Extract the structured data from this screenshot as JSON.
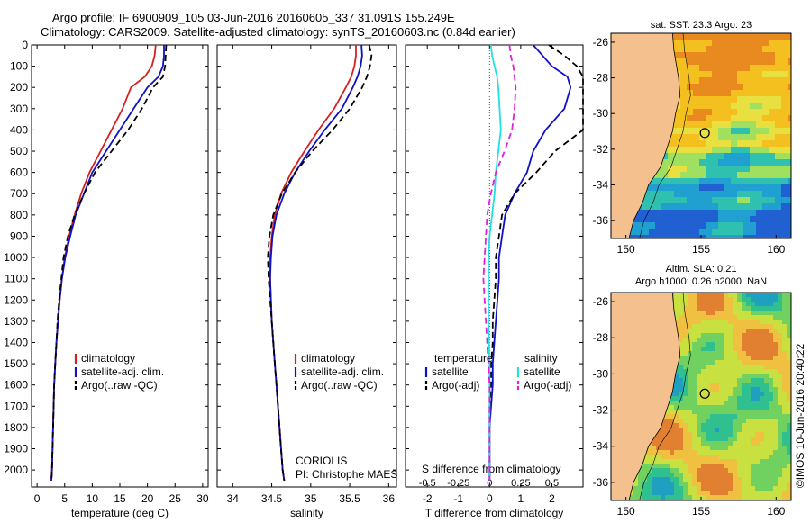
{
  "header": {
    "line1": "Argo profile: IF 6900909_105 03-Jun-2016 20160605_337 31.091S 155.249E",
    "line2": "Climatology: CARS2009. Satellite-adjusted climatology: synTS_20160603.nc (0.84d earlier)"
  },
  "colors": {
    "climatology": "#d62020",
    "satellite_temperature": "#1010c8",
    "satellite_salinity": "#20e0e0",
    "argo": "#000000",
    "argo_salinity_diff": "#e020e0",
    "land": "#f4c08e"
  },
  "chart_data": [
    {
      "type": "line",
      "name": "temperature-profile",
      "xlabel": "temperature (deg C)",
      "ylabel": "",
      "xlim": [
        -1,
        31
      ],
      "ylim": [
        2080,
        0
      ],
      "xticks": [
        0,
        5,
        10,
        15,
        20,
        25,
        30
      ],
      "yticks": [
        0,
        100,
        200,
        300,
        400,
        500,
        600,
        700,
        800,
        900,
        1000,
        1100,
        1200,
        1300,
        1400,
        1500,
        1600,
        1700,
        1800,
        1900,
        2000
      ],
      "legend": [
        "climatology",
        "satellite-adj. clim.",
        "Argo(..raw -QC)"
      ],
      "series": [
        {
          "name": "climatology",
          "color": "#d62020",
          "style": "solid",
          "x": [
            21.5,
            21.3,
            20.8,
            19.5,
            17.0,
            15.5,
            13.5,
            11.5,
            9.5,
            8.0,
            6.8,
            5.8,
            5.0,
            4.5,
            4.1,
            3.8,
            3.5,
            3.3,
            3.1,
            3.0,
            2.9,
            2.8,
            2.7,
            2.6
          ],
          "y": [
            0,
            50,
            100,
            150,
            200,
            300,
            400,
            500,
            600,
            700,
            800,
            900,
            1000,
            1100,
            1200,
            1300,
            1400,
            1500,
            1600,
            1700,
            1800,
            1900,
            2000,
            2050
          ]
        },
        {
          "name": "satellite-adj. clim.",
          "color": "#1010c8",
          "style": "solid",
          "x": [
            23.0,
            23.0,
            22.8,
            22.0,
            20.0,
            17.5,
            15.0,
            12.5,
            10.0,
            8.5,
            7.0,
            6.0,
            5.1,
            4.5,
            4.1,
            3.8,
            3.5,
            3.3,
            3.1,
            3.0,
            2.9,
            2.8,
            2.7,
            2.6
          ],
          "y": [
            0,
            50,
            100,
            150,
            200,
            300,
            400,
            500,
            600,
            700,
            800,
            900,
            1000,
            1100,
            1200,
            1300,
            1400,
            1500,
            1600,
            1700,
            1800,
            1900,
            2000,
            2050
          ]
        },
        {
          "name": "Argo(..raw -QC)",
          "color": "#000000",
          "style": "dashed",
          "x": [
            23.4,
            23.3,
            23.2,
            22.8,
            21.0,
            19.0,
            16.5,
            13.5,
            10.5,
            8.5,
            6.8,
            5.6,
            4.8,
            4.4,
            4.0,
            3.7,
            3.5,
            3.3,
            3.1,
            3.0,
            2.9,
            2.8,
            2.7,
            2.6
          ],
          "y": [
            0,
            50,
            100,
            150,
            200,
            300,
            400,
            500,
            600,
            700,
            800,
            900,
            1000,
            1100,
            1200,
            1300,
            1400,
            1500,
            1600,
            1700,
            1800,
            1900,
            2000,
            2050
          ]
        }
      ]
    },
    {
      "type": "line",
      "name": "salinity-profile",
      "xlabel": "salinity",
      "ylabel": "",
      "xlim": [
        33.8,
        36.1
      ],
      "ylim": [
        2080,
        0
      ],
      "xticks": [
        34,
        34.5,
        35,
        35.5,
        36
      ],
      "legend": [
        "climatology",
        "satellite-adj. clim.",
        "Argo(..raw -QC)"
      ],
      "annotation": [
        "CORIOLIS",
        "PI: Christophe MAES"
      ],
      "series": [
        {
          "name": "climatology",
          "color": "#d62020",
          "style": "solid",
          "x": [
            35.58,
            35.58,
            35.56,
            35.52,
            35.45,
            35.3,
            35.1,
            34.92,
            34.75,
            34.62,
            34.54,
            34.5,
            34.48,
            34.48,
            34.49,
            34.5,
            34.52,
            34.54,
            34.56,
            34.58,
            34.6,
            34.62,
            34.64,
            34.66
          ],
          "y": [
            0,
            50,
            100,
            150,
            200,
            300,
            400,
            500,
            600,
            700,
            800,
            900,
            1000,
            1100,
            1200,
            1300,
            1400,
            1500,
            1600,
            1700,
            1800,
            1900,
            2000,
            2050
          ]
        },
        {
          "name": "satellite-adj. clim.",
          "color": "#1010c8",
          "style": "solid",
          "x": [
            35.65,
            35.66,
            35.64,
            35.6,
            35.54,
            35.4,
            35.18,
            34.98,
            34.8,
            34.66,
            34.56,
            34.51,
            34.49,
            34.48,
            34.49,
            34.5,
            34.52,
            34.54,
            34.56,
            34.58,
            34.6,
            34.62,
            34.64,
            34.66
          ],
          "y": [
            0,
            50,
            100,
            150,
            200,
            300,
            400,
            500,
            600,
            700,
            800,
            900,
            1000,
            1100,
            1200,
            1300,
            1400,
            1500,
            1600,
            1700,
            1800,
            1900,
            2000,
            2050
          ]
        },
        {
          "name": "Argo(..raw -QC)",
          "color": "#000000",
          "style": "dashed",
          "x": [
            35.75,
            35.78,
            35.76,
            35.72,
            35.66,
            35.5,
            35.28,
            35.02,
            34.8,
            34.63,
            34.52,
            34.47,
            34.45,
            34.46,
            34.48,
            34.5,
            34.52,
            34.54,
            34.56,
            34.58,
            34.6,
            34.62,
            34.64,
            34.66
          ],
          "y": [
            0,
            50,
            100,
            150,
            200,
            300,
            400,
            500,
            600,
            700,
            800,
            900,
            1000,
            1100,
            1200,
            1300,
            1400,
            1500,
            1600,
            1700,
            1800,
            1900,
            2000,
            2050
          ]
        }
      ]
    },
    {
      "type": "line",
      "name": "difference-profile",
      "xlabel": "T difference from climatology",
      "ylabel": "",
      "top_axis_label": "S difference from climatology",
      "xlim": [
        -2.7,
        3.0
      ],
      "ylim": [
        2080,
        0
      ],
      "xticks": [
        -2,
        -1,
        0,
        1,
        2
      ],
      "s_xticks": [
        -0.5,
        -0.25,
        0,
        0.25,
        0.5
      ],
      "legend_left": {
        "title": "temperature",
        "items": [
          "satellite",
          "Argo(-adj)"
        ]
      },
      "legend_right": {
        "title": "salinity",
        "items": [
          "satellite",
          "Argo(-adj)"
        ]
      },
      "series": [
        {
          "name": "temperature satellite",
          "color": "#1010c8",
          "style": "solid",
          "x": [
            1.4,
            1.7,
            2.0,
            2.5,
            2.6,
            2.4,
            1.8,
            1.4,
            1.2,
            0.8,
            0.5,
            0.4,
            0.3,
            0.3,
            0.25,
            0.2,
            0.15,
            0.1,
            0.1,
            0.05,
            0.0,
            0.0,
            0.0
          ],
          "y": [
            0,
            50,
            100,
            150,
            200,
            300,
            400,
            500,
            600,
            700,
            800,
            900,
            1000,
            1100,
            1200,
            1300,
            1400,
            1500,
            1600,
            1700,
            1800,
            1900,
            2050
          ]
        },
        {
          "name": "temperature Argo(-adj)",
          "color": "#000000",
          "style": "dashed",
          "x": [
            1.9,
            2.4,
            2.8,
            3.0,
            3.0,
            3.0,
            3.0,
            2.1,
            1.5,
            0.8,
            0.4,
            0.3,
            0.2,
            0.2,
            0.15,
            0.1,
            0.1,
            0.05,
            0.05,
            0.0,
            0.0,
            0.0,
            0.0
          ],
          "y": [
            0,
            50,
            100,
            150,
            200,
            300,
            400,
            500,
            600,
            700,
            800,
            900,
            1000,
            1100,
            1200,
            1300,
            1400,
            1500,
            1600,
            1700,
            1800,
            1900,
            2050
          ]
        },
        {
          "name": "salinity satellite",
          "color": "#20e0e0",
          "style": "solid",
          "x": [
            0.01,
            0.02,
            0.04,
            0.06,
            0.07,
            0.08,
            0.09,
            0.07,
            0.05,
            0.04,
            0.02,
            0.0,
            -0.01,
            -0.01,
            -0.01,
            -0.01,
            -0.005,
            0.0,
            0.0,
            0.0,
            0.0,
            0.0,
            0.0
          ],
          "y": [
            0,
            50,
            100,
            150,
            200,
            300,
            400,
            500,
            600,
            700,
            800,
            900,
            1000,
            1100,
            1200,
            1300,
            1400,
            1500,
            1600,
            1700,
            1800,
            1900,
            2050
          ]
        },
        {
          "name": "salinity Argo(-adj)",
          "color": "#e020e0",
          "style": "dashed",
          "x": [
            0.16,
            0.17,
            0.19,
            0.2,
            0.21,
            0.2,
            0.18,
            0.12,
            0.05,
            0.01,
            -0.02,
            -0.03,
            -0.04,
            -0.05,
            -0.04,
            -0.03,
            -0.02,
            -0.01,
            0.0,
            0.0,
            0.0,
            0.0,
            0.0
          ],
          "y": [
            0,
            50,
            100,
            150,
            200,
            300,
            400,
            500,
            600,
            700,
            800,
            900,
            1000,
            1100,
            1200,
            1300,
            1400,
            1500,
            1600,
            1700,
            1800,
            1900,
            2050
          ]
        }
      ]
    },
    {
      "type": "heatmap",
      "name": "sst-map",
      "title": "sat. SST: 23.3  Argo: 23",
      "xlim": [
        149,
        161
      ],
      "ylim": [
        -37,
        -25.5
      ],
      "xticks": [
        150,
        155,
        160
      ],
      "yticks": [
        -26,
        -28,
        -30,
        -32,
        -34,
        -36
      ],
      "marker": {
        "lon": 155.249,
        "lat": -31.091
      }
    },
    {
      "type": "heatmap",
      "name": "sla-map",
      "title_lines": [
        "Altim. SLA: 0.21",
        "Argo h1000: 0.26 h2000: NaN"
      ],
      "xlim": [
        149,
        161
      ],
      "ylim": [
        -37,
        -25.5
      ],
      "xticks": [
        150,
        155,
        160
      ],
      "yticks": [
        -26,
        -28,
        -30,
        -32,
        -34,
        -36
      ],
      "marker": {
        "lon": 155.249,
        "lat": -31.091
      }
    }
  ],
  "footer": {
    "credit": "©IMOS 10-Jun-2016 20:40:22"
  }
}
